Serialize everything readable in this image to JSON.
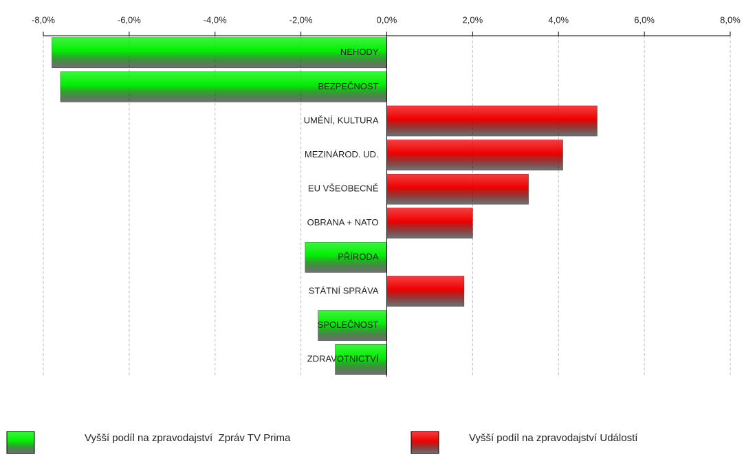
{
  "chart_data": {
    "type": "bar",
    "orientation": "horizontal",
    "categories": [
      "NEHODY",
      "BEZPEČNOST",
      "UMĚNÍ, KULTURA",
      "MEZINÁROD. UD.",
      "EU VŠEOBECNĚ",
      "OBRANA + NATO",
      "PŘÍRODA",
      "STÁTNÍ SPRÁVA",
      "SPOLEČNOST",
      "ZDRAVOTNICTVÍ"
    ],
    "series": [
      {
        "name": "Vyšší podíl na zpravodajství  Zpráv TV Prima",
        "color": "#00ee00",
        "values": [
          -7.8,
          -7.6,
          null,
          null,
          null,
          null,
          -1.9,
          null,
          -1.6,
          -1.2
        ]
      },
      {
        "name": "Vyšší podíl na zpravodajství Událostí",
        "color": "#ee0000",
        "values": [
          null,
          null,
          4.9,
          4.1,
          3.3,
          2.0,
          null,
          1.8,
          null,
          null
        ]
      }
    ],
    "xlim": [
      -8,
      8
    ],
    "xticks": [
      {
        "value": -8,
        "label": "-8,0%"
      },
      {
        "value": -6,
        "label": "-6,0%"
      },
      {
        "value": -4,
        "label": "-4,0%"
      },
      {
        "value": -2,
        "label": "-2,0%"
      },
      {
        "value": 0,
        "label": "0,0%"
      },
      {
        "value": 2,
        "label": "2,0%"
      },
      {
        "value": 4,
        "label": "4,0%"
      },
      {
        "value": 6,
        "label": "6,0%"
      },
      {
        "value": 8,
        "label": "8,0%"
      }
    ],
    "grid": true
  }
}
